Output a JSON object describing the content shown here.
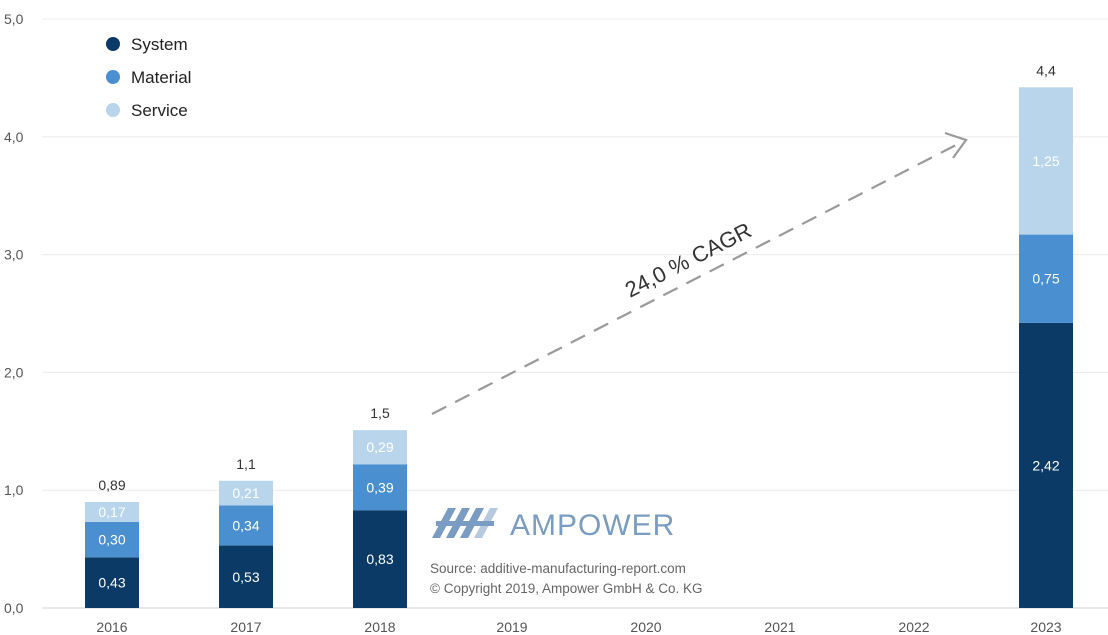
{
  "chart_data": {
    "type": "bar",
    "stacked": true,
    "categories": [
      "2016",
      "2017",
      "2018",
      "2019",
      "2020",
      "2021",
      "2022",
      "2023"
    ],
    "series": [
      {
        "name": "System",
        "values": [
          0.43,
          0.53,
          0.83,
          null,
          null,
          null,
          null,
          2.42
        ]
      },
      {
        "name": "Material",
        "values": [
          0.3,
          0.34,
          0.39,
          null,
          null,
          null,
          null,
          0.75
        ]
      },
      {
        "name": "Service",
        "values": [
          0.17,
          0.21,
          0.29,
          null,
          null,
          null,
          null,
          1.25
        ]
      }
    ],
    "series_labels": [
      [
        "0,43",
        "0,53",
        "0,83",
        "",
        "",
        "",
        "",
        "2,42"
      ],
      [
        "0,30",
        "0,34",
        "0,39",
        "",
        "",
        "",
        "",
        "0,75"
      ],
      [
        "0,17",
        "0,21",
        "0,29",
        "",
        "",
        "",
        "",
        "1,25"
      ]
    ],
    "totals": [
      "0,89",
      "1,1",
      "1,5",
      "",
      "",
      "",
      "",
      "4,4"
    ],
    "ylim": [
      0,
      5
    ],
    "yticks": [
      "0,0",
      "1,0",
      "2,0",
      "3,0",
      "4,0",
      "5,0"
    ],
    "grid": true,
    "legend_position": "top-left",
    "colors": {
      "System": "#0b3a66",
      "Material": "#4a90d0",
      "Service": "#b9d5ec"
    },
    "annotation": "24,0 % CAGR",
    "title": "",
    "xlabel": "",
    "ylabel": ""
  },
  "branding": {
    "logo_text": "AMPOWER",
    "source": "Source: additive-manufacturing-report.com",
    "copyright": "© Copyright 2019, Ampower GmbH & Co. KG"
  }
}
